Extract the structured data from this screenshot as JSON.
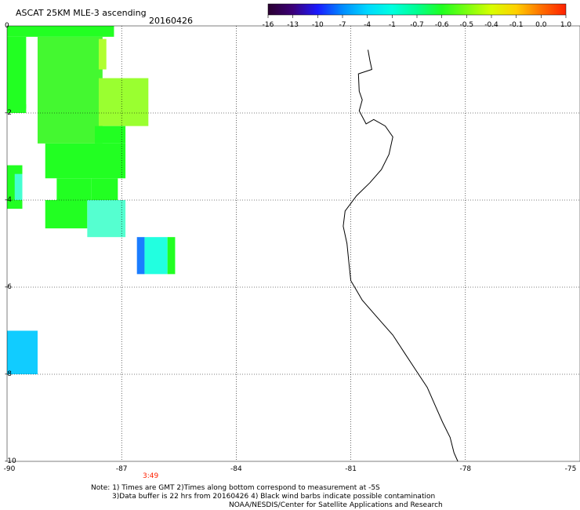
{
  "title": "ASCAT 25KM MLE-3 ascending",
  "date": "20160426",
  "time_label": "3:49",
  "colorbar": {
    "labels": [
      "-16",
      "-13",
      "-10",
      "-7",
      "-4",
      "-1",
      "-0.7",
      "-0.6",
      "-0.5",
      "-0.4",
      "-0.1",
      "0.0",
      "1.0"
    ],
    "colors": [
      "#2a0030",
      "#3c0078",
      "#1a1aff",
      "#008cff",
      "#00d8ff",
      "#00ffe0",
      "#00ff90",
      "#20ff20",
      "#7aff10",
      "#d8ff00",
      "#ffd000",
      "#ff7000",
      "#ff2000"
    ]
  },
  "axes": {
    "lon_labels": [
      "-90",
      "-87",
      "-84",
      "-81",
      "-78",
      "-75"
    ],
    "lat_labels": [
      "0",
      "-2",
      "-4",
      "-6",
      "-8",
      "-10"
    ],
    "lon_range": [
      -90,
      -75
    ],
    "lat_range": [
      0,
      -10
    ],
    "grid": true
  },
  "notes": [
    "Note: 1) Times are GMT 2)Times along bottom correspond to measurement at -5S",
    "3)Data buffer is 22 hrs from 20160426 4) Black wind barbs indicate possible contamination",
    "NOAA/NESDIS/Center for Satellite Applications and Research"
  ],
  "swath_cells": [
    {
      "lon": [
        -90,
        -87.2
      ],
      "lat": [
        0,
        -0.25
      ],
      "color": "#22ff22"
    },
    {
      "lon": [
        -90,
        -89.5
      ],
      "lat": [
        -0.25,
        -1.9
      ],
      "color": "#22ff22"
    },
    {
      "lon": [
        -89.2,
        -87.5
      ],
      "lat": [
        -0.25,
        -2.7
      ],
      "color": "#44f830"
    },
    {
      "lon": [
        -87.6,
        -87.4
      ],
      "lat": [
        -0.3,
        -1.0
      ],
      "color": "#b0ff30"
    },
    {
      "lon": [
        -87.6,
        -86.3
      ],
      "lat": [
        -1.2,
        -2.3
      ],
      "color": "#9aff30"
    },
    {
      "lon": [
        -89.0,
        -86.9
      ],
      "lat": [
        -2.7,
        -3.5
      ],
      "color": "#22ff22"
    },
    {
      "lon": [
        -87.7,
        -86.9
      ],
      "lat": [
        -2.3,
        -2.7
      ],
      "color": "#22ff22"
    },
    {
      "lon": [
        -88.7,
        -87.8
      ],
      "lat": [
        -3.5,
        -4.0
      ],
      "color": "#22ff22"
    },
    {
      "lon": [
        -87.8,
        -87.1
      ],
      "lat": [
        -3.5,
        -4.0
      ],
      "color": "#22ff22"
    },
    {
      "lon": [
        -89.0,
        -87.9
      ],
      "lat": [
        -4.0,
        -4.65
      ],
      "color": "#22ff22"
    },
    {
      "lon": [
        -87.9,
        -86.9
      ],
      "lat": [
        -4.0,
        -4.85
      ],
      "color": "#55ffd0"
    },
    {
      "lon": [
        -90,
        -89.5
      ],
      "lat": [
        -1.8,
        -2.0
      ],
      "color": "#22ff22"
    },
    {
      "lon": [
        -90,
        -89.6
      ],
      "lat": [
        -3.2,
        -4.2
      ],
      "color": "#22ff22"
    },
    {
      "lon": [
        -89.8,
        -89.6
      ],
      "lat": [
        -3.4,
        -4.0
      ],
      "color": "#44ffd0"
    },
    {
      "lon": [
        -86.6,
        -86.4
      ],
      "lat": [
        -4.85,
        -5.7
      ],
      "color": "#1a7cff"
    },
    {
      "lon": [
        -86.4,
        -85.8
      ],
      "lat": [
        -4.85,
        -5.7
      ],
      "color": "#22ffe0"
    },
    {
      "lon": [
        -85.8,
        -85.6
      ],
      "lat": [
        -4.85,
        -5.7
      ],
      "color": "#22ff22"
    },
    {
      "lon": [
        -90,
        -89.2
      ],
      "lat": [
        -7.0,
        -8.0
      ],
      "color": "#11ccff"
    }
  ],
  "coastline": [
    [
      -80.55,
      -0.55
    ],
    [
      -80.5,
      -0.8
    ],
    [
      -80.45,
      -1.0
    ],
    [
      -80.8,
      -1.1
    ],
    [
      -80.78,
      -1.5
    ],
    [
      -80.7,
      -1.7
    ],
    [
      -80.78,
      -1.95
    ],
    [
      -80.6,
      -2.25
    ],
    [
      -80.4,
      -2.15
    ],
    [
      -80.1,
      -2.3
    ],
    [
      -79.9,
      -2.55
    ],
    [
      -80.0,
      -2.95
    ],
    [
      -80.2,
      -3.3
    ],
    [
      -80.5,
      -3.6
    ],
    [
      -80.85,
      -3.9
    ],
    [
      -81.15,
      -4.25
    ],
    [
      -81.2,
      -4.6
    ],
    [
      -81.1,
      -5.0
    ],
    [
      -81.05,
      -5.45
    ],
    [
      -81.0,
      -5.85
    ],
    [
      -80.9,
      -6.0
    ],
    [
      -80.7,
      -6.3
    ],
    [
      -80.3,
      -6.7
    ],
    [
      -79.9,
      -7.1
    ],
    [
      -79.6,
      -7.5
    ],
    [
      -79.3,
      -7.9
    ],
    [
      -79.0,
      -8.3
    ],
    [
      -78.8,
      -8.7
    ],
    [
      -78.6,
      -9.1
    ],
    [
      -78.4,
      -9.45
    ],
    [
      -78.3,
      -9.8
    ],
    [
      -78.2,
      -10.0
    ]
  ]
}
